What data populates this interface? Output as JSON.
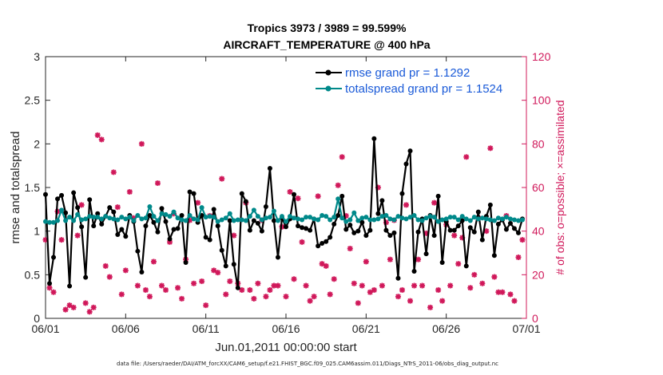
{
  "chart_data": {
    "type": "line",
    "title": "Tropics 3973 / 3989 = 99.599%",
    "subtitle": "AIRCRAFT_TEMPERATURE @ 400 hPa",
    "xlabel": "Jun.01,2011 00:00:00 start",
    "ylabel": "rmse and totalspread",
    "y2label": "# of obs: o=possible; ×=assimilated",
    "footnote": "data file: /Users/raeder/DAI/ATM_forcXX/CAM6_setup/f.e21.FHIST_BGC.f09_025.CAM6assim.011/Diags_NTrS_2011-06/obs_diag_output.nc",
    "xlim": [
      0,
      30
    ],
    "ylim": [
      0,
      3
    ],
    "y2lim": [
      0,
      120
    ],
    "x_ticks": [
      0,
      5,
      10,
      15,
      20,
      25,
      30
    ],
    "x_tick_labels": [
      "06/01",
      "06/06",
      "06/11",
      "06/16",
      "06/21",
      "06/26",
      "07/01"
    ],
    "y_ticks": [
      0,
      0.5,
      1,
      1.5,
      2,
      2.5,
      3
    ],
    "y_tick_labels": [
      "0",
      "0.5",
      "1",
      "1.5",
      "2",
      "2.5",
      "3"
    ],
    "y2_ticks": [
      0,
      20,
      40,
      60,
      80,
      100,
      120
    ],
    "y2_tick_labels": [
      "0",
      "20",
      "40",
      "60",
      "80",
      "100",
      "120"
    ],
    "series": [
      {
        "name": "rmse grand pr = 1.1292",
        "color": "#000000",
        "axis": "left",
        "x": [
          0.0,
          0.25,
          0.5,
          0.75,
          1.0,
          1.25,
          1.5,
          1.75,
          2.0,
          2.25,
          2.5,
          2.75,
          3.0,
          3.25,
          3.5,
          3.75,
          4.0,
          4.25,
          4.5,
          4.75,
          5.0,
          5.25,
          5.5,
          5.75,
          6.0,
          6.25,
          6.5,
          6.75,
          7.0,
          7.25,
          7.5,
          7.75,
          8.0,
          8.25,
          8.5,
          8.75,
          9.0,
          9.25,
          9.5,
          9.75,
          10.0,
          10.25,
          10.5,
          10.75,
          11.0,
          11.25,
          11.5,
          11.75,
          12.0,
          12.25,
          12.5,
          12.75,
          13.0,
          13.25,
          13.5,
          13.75,
          14.0,
          14.25,
          14.5,
          14.75,
          15.0,
          15.25,
          15.5,
          15.75,
          16.0,
          16.25,
          16.5,
          16.75,
          17.0,
          17.25,
          17.5,
          17.75,
          18.0,
          18.25,
          18.5,
          18.75,
          19.0,
          19.25,
          19.5,
          19.75,
          20.0,
          20.25,
          20.5,
          20.75,
          21.0,
          21.25,
          21.5,
          21.75,
          22.0,
          22.25,
          22.5,
          22.75,
          23.0,
          23.25,
          23.5,
          23.75,
          24.0,
          24.25,
          24.5,
          24.75,
          25.0,
          25.25,
          25.5,
          25.75,
          26.0,
          26.25,
          26.5,
          26.75,
          27.0,
          27.25,
          27.5,
          27.75,
          28.0,
          28.25,
          28.5,
          28.75,
          29.0,
          29.25,
          29.5,
          29.75
        ],
        "values": [
          1.42,
          0.4,
          0.7,
          1.37,
          1.41,
          1.21,
          0.37,
          1.44,
          1.27,
          1.05,
          0.47,
          1.36,
          1.06,
          1.2,
          1.08,
          1.17,
          1.27,
          1.22,
          0.96,
          1.02,
          0.94,
          1.18,
          1.11,
          0.77,
          0.53,
          1.06,
          1.18,
          1.1,
          0.99,
          1.26,
          1.11,
          0.91,
          1.02,
          1.03,
          1.18,
          0.64,
          1.45,
          1.43,
          1.1,
          1.18,
          0.93,
          0.9,
          1.25,
          1.06,
          0.78,
          0.6,
          1.12,
          0.62,
          0.35,
          1.43,
          1.34,
          1.01,
          1.12,
          1.09,
          1.0,
          1.28,
          1.72,
          1.12,
          0.7,
          1.15,
          1.05,
          1.14,
          1.42,
          1.06,
          1.04,
          1.03,
          1.01,
          1.14,
          0.83,
          0.86,
          0.88,
          0.93,
          1.08,
          1.18,
          1.4,
          1.02,
          1.07,
          0.98,
          1.0,
          1.1,
          0.95,
          1.01,
          2.06,
          1.2,
          1.35,
          1.01,
          0.95,
          0.98,
          0.46,
          1.43,
          1.77,
          1.92,
          0.54,
          0.99,
          1.14,
          0.74,
          1.18,
          0.95,
          1.4,
          0.64,
          1.11,
          1.01,
          1.01,
          1.06,
          1.12,
          0.6,
          1.04,
          0.99,
          1.22,
          0.9,
          1.17,
          1.3,
          0.72,
          1.08,
          1.13,
          1.02,
          1.09,
          1.03,
          0.98,
          1.14
        ]
      },
      {
        "name": "totalspread grand pr = 1.1524",
        "color": "#00898a",
        "axis": "left",
        "x": [
          0.0,
          0.25,
          0.5,
          0.75,
          1.0,
          1.25,
          1.5,
          1.75,
          2.0,
          2.25,
          2.5,
          2.75,
          3.0,
          3.25,
          3.5,
          3.75,
          4.0,
          4.25,
          4.5,
          4.75,
          5.0,
          5.25,
          5.5,
          5.75,
          6.0,
          6.25,
          6.5,
          6.75,
          7.0,
          7.25,
          7.5,
          7.75,
          8.0,
          8.25,
          8.5,
          8.75,
          9.0,
          9.25,
          9.5,
          9.75,
          10.0,
          10.25,
          10.5,
          10.75,
          11.0,
          11.25,
          11.5,
          11.75,
          12.0,
          12.25,
          12.5,
          12.75,
          13.0,
          13.25,
          13.5,
          13.75,
          14.0,
          14.25,
          14.5,
          14.75,
          15.0,
          15.25,
          15.5,
          15.75,
          16.0,
          16.25,
          16.5,
          16.75,
          17.0,
          17.25,
          17.5,
          17.75,
          18.0,
          18.25,
          18.5,
          18.75,
          19.0,
          19.25,
          19.5,
          19.75,
          20.0,
          20.25,
          20.5,
          20.75,
          21.0,
          21.25,
          21.5,
          21.75,
          22.0,
          22.25,
          22.5,
          22.75,
          23.0,
          23.25,
          23.5,
          23.75,
          24.0,
          24.25,
          24.5,
          24.75,
          25.0,
          25.25,
          25.5,
          25.75,
          26.0,
          26.25,
          26.5,
          26.75,
          27.0,
          27.25,
          27.5,
          27.75,
          28.0,
          28.25,
          28.5,
          28.75,
          29.0,
          29.25,
          29.5,
          29.75
        ],
        "values": [
          1.11,
          1.1,
          1.1,
          1.12,
          1.24,
          1.12,
          1.16,
          1.12,
          1.19,
          1.13,
          1.14,
          1.17,
          1.16,
          1.16,
          1.14,
          1.17,
          1.15,
          1.14,
          1.13,
          1.16,
          1.14,
          1.16,
          1.12,
          1.18,
          1.14,
          1.15,
          1.28,
          1.17,
          1.12,
          1.2,
          1.19,
          1.17,
          1.22,
          1.15,
          1.13,
          1.12,
          1.18,
          1.14,
          1.13,
          1.27,
          1.16,
          1.17,
          1.16,
          1.11,
          1.13,
          1.15,
          1.2,
          1.12,
          1.13,
          1.13,
          1.12,
          1.17,
          1.24,
          1.17,
          1.13,
          1.15,
          1.16,
          1.23,
          1.12,
          1.17,
          1.11,
          1.17,
          1.15,
          1.14,
          1.13,
          1.16,
          1.16,
          1.14,
          1.13,
          1.18,
          1.17,
          1.13,
          1.16,
          1.37,
          1.15,
          1.11,
          1.13,
          1.21,
          1.12,
          1.15,
          1.16,
          1.13,
          1.13,
          1.14,
          1.17,
          1.18,
          1.14,
          1.13,
          1.17,
          1.15,
          1.14,
          1.16,
          1.18,
          1.13,
          1.12,
          1.15,
          1.17,
          1.16,
          1.11,
          1.13,
          1.14,
          1.16,
          1.16,
          1.13,
          1.17,
          1.14,
          1.12,
          1.16,
          1.14,
          1.15,
          1.14,
          1.13,
          1.12,
          1.15,
          1.14,
          1.16,
          1.14,
          1.13,
          1.12,
          1.13
        ]
      },
      {
        "name": "# of obs assimilated",
        "color": "#d0185a",
        "axis": "right",
        "marker": "asterisk",
        "x": [
          0.0,
          0.25,
          0.5,
          0.75,
          1.0,
          1.25,
          1.5,
          1.75,
          2.0,
          2.25,
          2.5,
          2.75,
          3.0,
          3.25,
          3.5,
          3.75,
          4.0,
          4.25,
          4.5,
          4.75,
          5.0,
          5.25,
          5.5,
          5.75,
          6.0,
          6.25,
          6.5,
          6.75,
          7.0,
          7.25,
          7.5,
          7.75,
          8.0,
          8.25,
          8.5,
          8.75,
          9.0,
          9.25,
          9.5,
          9.75,
          10.0,
          10.25,
          10.5,
          10.75,
          11.0,
          11.25,
          11.5,
          11.75,
          12.0,
          12.25,
          12.5,
          12.75,
          13.0,
          13.25,
          13.5,
          13.75,
          14.0,
          14.25,
          14.5,
          14.75,
          15.0,
          15.25,
          15.5,
          15.75,
          16.0,
          16.25,
          16.5,
          16.75,
          17.0,
          17.25,
          17.5,
          17.75,
          18.0,
          18.25,
          18.5,
          18.75,
          19.0,
          19.25,
          19.5,
          19.75,
          20.0,
          20.25,
          20.5,
          20.75,
          21.0,
          21.25,
          21.5,
          21.75,
          22.0,
          22.25,
          22.5,
          22.75,
          23.0,
          23.25,
          23.5,
          23.75,
          24.0,
          24.25,
          24.5,
          24.75,
          25.0,
          25.25,
          25.5,
          25.75,
          26.0,
          26.25,
          26.5,
          26.75,
          27.0,
          27.25,
          27.5,
          27.75,
          28.0,
          28.25,
          28.5,
          28.75,
          29.0,
          29.25,
          29.5,
          29.75
        ],
        "values": [
          36,
          14,
          12,
          49,
          36,
          4,
          6,
          5,
          38,
          52,
          7,
          3,
          5,
          84,
          82,
          24,
          19,
          67,
          51,
          11,
          22,
          58,
          46,
          15,
          80,
          13,
          10,
          26,
          62,
          15,
          13,
          35,
          48,
          14,
          9,
          27,
          45,
          16,
          53,
          17,
          6,
          47,
          22,
          21,
          64,
          11,
          17,
          38,
          16,
          13,
          53,
          13,
          9,
          16,
          45,
          10,
          13,
          15,
          15,
          42,
          10,
          58,
          18,
          55,
          35,
          15,
          8,
          10,
          56,
          25,
          24,
          11,
          18,
          61,
          74,
          47,
          32,
          16,
          7,
          15,
          26,
          12,
          13,
          60,
          15,
          44,
          27,
          45,
          10,
          13,
          52,
          8,
          15,
          27,
          15,
          39,
          5,
          53,
          13,
          8,
          43,
          15,
          38,
          25,
          37,
          74,
          14,
          20,
          46,
          16,
          40,
          78,
          19,
          12,
          12,
          47,
          11,
          8,
          28,
          36
        ]
      }
    ]
  },
  "legend": {
    "rmse_label": "rmse grand pr = 1.1292",
    "spread_label": "totalspread grand pr = 1.1524"
  }
}
